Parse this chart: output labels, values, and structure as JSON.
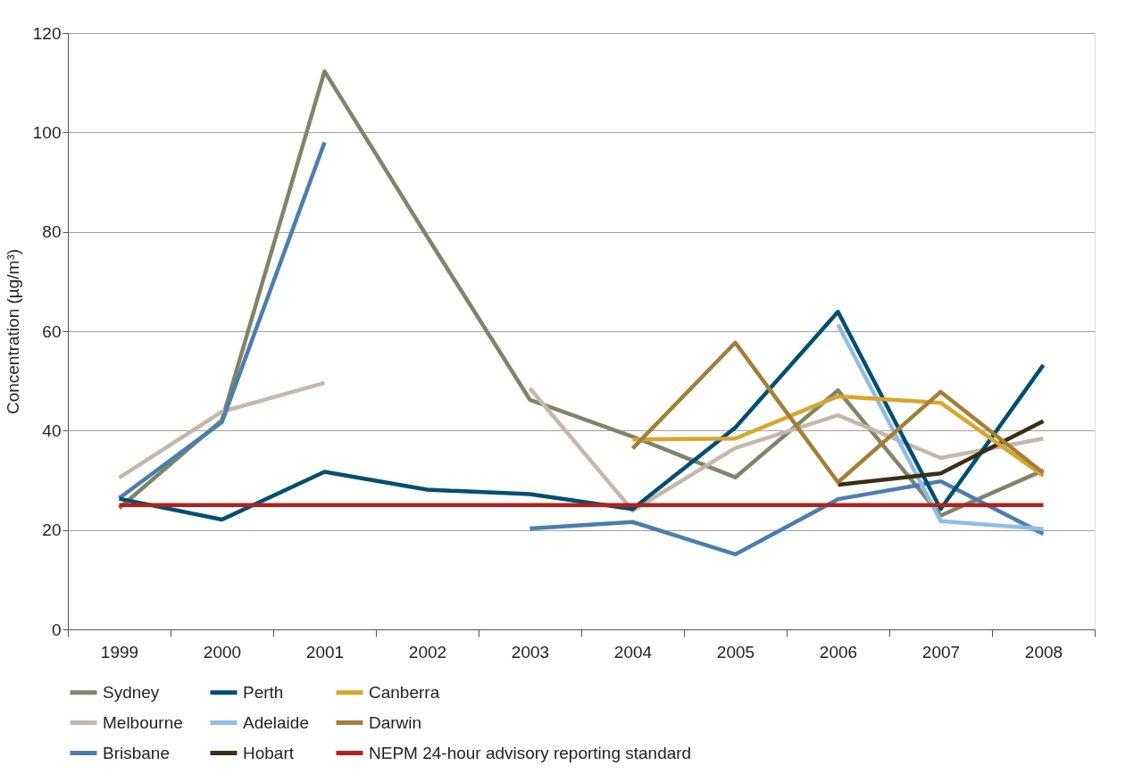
{
  "chart_data": {
    "type": "line",
    "ylabel": "Concentration (µg/m³)",
    "categories": [
      "1999",
      "2000",
      "2001",
      "2002",
      "2003",
      "2004",
      "2005",
      "2006",
      "2007",
      "2008"
    ],
    "ylim": [
      0,
      120
    ],
    "yticks": [
      0,
      20,
      40,
      60,
      80,
      100,
      120
    ],
    "grid": "y",
    "legend": "bottom",
    "line_style": "solid",
    "marker": "none",
    "series": [
      {
        "name": "Sydney",
        "color": "#808569",
        "values": [
          24.4,
          42.1,
          112.3,
          79,
          46.2,
          38.8,
          30.6,
          48.1,
          22.9,
          32
        ]
      },
      {
        "name": "Melbourne",
        "color": "#c4b8ab",
        "values": [
          30.5,
          43.8,
          49.6,
          null,
          48.5,
          23.9,
          36.5,
          43.1,
          34.5,
          38.4
        ]
      },
      {
        "name": "Brisbane",
        "color": "#4a7eb0",
        "values": [
          26.4,
          41.7,
          98,
          null,
          20.3,
          21.6,
          15.1,
          26.2,
          29.8,
          19.2
        ]
      },
      {
        "name": "Perth",
        "color": "#004f72",
        "values": [
          26.3,
          22.1,
          31.7,
          28.1,
          27.2,
          24.2,
          40.6,
          63.9,
          24.2,
          53.2
        ]
      },
      {
        "name": "Adelaide",
        "color": "#8fbde6",
        "values": [
          null,
          null,
          null,
          null,
          null,
          null,
          null,
          61.3,
          21.8,
          20.2
        ]
      },
      {
        "name": "Hobart",
        "color": "#3b2e13",
        "values": [
          null,
          null,
          null,
          null,
          null,
          null,
          null,
          29.1,
          31.4,
          41.9
        ]
      },
      {
        "name": "Canberra",
        "color": "#d9a52b",
        "values": [
          null,
          null,
          null,
          null,
          null,
          38.2,
          38.4,
          46.9,
          45.6,
          30.9
        ]
      },
      {
        "name": "Darwin",
        "color": "#a57e36",
        "values": [
          null,
          null,
          null,
          null,
          null,
          36.4,
          57.7,
          29.6,
          47.8,
          31.5
        ]
      }
    ],
    "ref_lines": [
      {
        "axis": "y",
        "value": 25,
        "label": "NEPM 24-hour advisory reporting standard",
        "color": "#b5201a"
      }
    ]
  }
}
